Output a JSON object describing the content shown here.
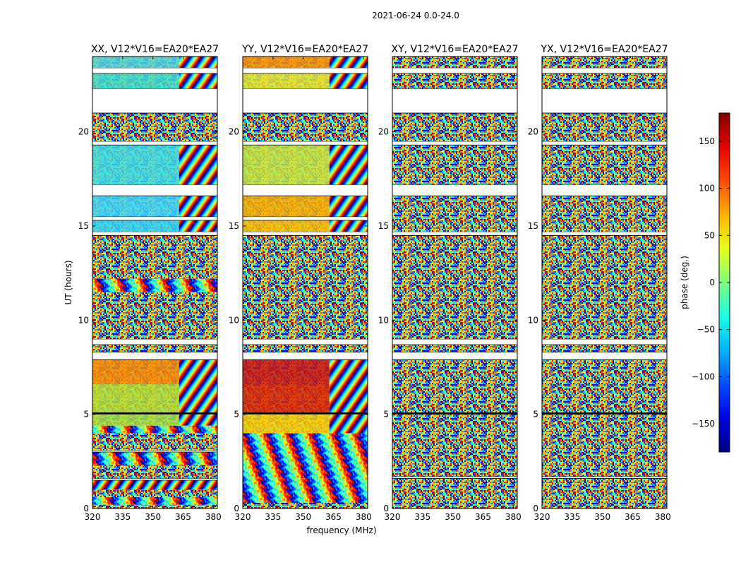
{
  "figure": {
    "suptitle": "2021-06-24 0.0-24.0"
  },
  "chart_data": {
    "type": "heatmap",
    "title": "2021-06-24 0.0-24.0",
    "xlabel": "frequency (MHz)",
    "ylabel": "UT (hours)",
    "xlim": [
      320,
      382
    ],
    "ylim": [
      0,
      24
    ],
    "x_ticks": [
      320,
      335,
      350,
      365,
      380
    ],
    "y_ticks": [
      0,
      5,
      10,
      15,
      20
    ],
    "panels": [
      {
        "title": "XX, V12*V16=EA20*EA27",
        "bands": [
          {
            "t0": 0.0,
            "t1": 0.2,
            "mode": "noise"
          },
          {
            "t0": 0.2,
            "t1": 0.6,
            "mode": "fringe",
            "color": "mixed"
          },
          {
            "t0": 0.6,
            "t1": 1.0,
            "mode": "noise"
          },
          {
            "t0": 1.0,
            "t1": 1.5,
            "mode": "fringe",
            "color": "orange"
          },
          {
            "t0": 1.5,
            "t1": 1.6,
            "mode": "white"
          },
          {
            "t0": 1.6,
            "t1": 2.3,
            "mode": "noise"
          },
          {
            "t0": 2.3,
            "t1": 3.0,
            "mode": "fringe",
            "color": "mixed"
          },
          {
            "t0": 3.0,
            "t1": 3.1,
            "mode": "white"
          },
          {
            "t0": 3.1,
            "t1": 4.0,
            "mode": "noise"
          },
          {
            "t0": 4.0,
            "t1": 4.4,
            "mode": "fringe",
            "color": "mixed"
          },
          {
            "t0": 4.4,
            "t1": 5.0,
            "mode": "split",
            "colorL": "#a8e040",
            "colorR": "fringe"
          },
          {
            "t0": 5.0,
            "t1": 5.1,
            "mode": "black"
          },
          {
            "t0": 5.1,
            "t1": 6.6,
            "mode": "split",
            "colorL": "#b8e030",
            "colorR": "fringe"
          },
          {
            "t0": 6.6,
            "t1": 7.9,
            "mode": "split",
            "colorL": "#ff8800",
            "colorR": "fringe"
          },
          {
            "t0": 7.9,
            "t1": 8.3,
            "mode": "white"
          },
          {
            "t0": 8.3,
            "t1": 8.7,
            "mode": "noise"
          },
          {
            "t0": 8.7,
            "t1": 9.0,
            "mode": "white"
          },
          {
            "t0": 9.0,
            "t1": 11.5,
            "mode": "noise"
          },
          {
            "t0": 11.5,
            "t1": 12.2,
            "mode": "fringe",
            "color": "mixed"
          },
          {
            "t0": 12.2,
            "t1": 14.5,
            "mode": "noise"
          },
          {
            "t0": 14.5,
            "t1": 14.7,
            "mode": "white"
          },
          {
            "t0": 14.7,
            "t1": 15.3,
            "mode": "split",
            "colorL": "#30d8ff",
            "colorR": "fringe"
          },
          {
            "t0": 15.3,
            "t1": 15.5,
            "mode": "white"
          },
          {
            "t0": 15.5,
            "t1": 16.6,
            "mode": "split",
            "colorL": "#40d8ff",
            "colorR": "fringe"
          },
          {
            "t0": 16.6,
            "t1": 17.2,
            "mode": "white"
          },
          {
            "t0": 17.2,
            "t1": 19.3,
            "mode": "split",
            "colorL": "#40e0e8",
            "colorR": "fringe"
          },
          {
            "t0": 19.3,
            "t1": 19.5,
            "mode": "white"
          },
          {
            "t0": 19.5,
            "t1": 21.0,
            "mode": "noise"
          },
          {
            "t0": 21.0,
            "t1": 22.3,
            "mode": "white"
          },
          {
            "t0": 22.3,
            "t1": 23.1,
            "mode": "split",
            "colorL": "#40e0d0",
            "colorR": "fringe"
          },
          {
            "t0": 23.1,
            "t1": 23.4,
            "mode": "white"
          },
          {
            "t0": 23.4,
            "t1": 24.0,
            "mode": "split",
            "colorL": "#50d8e0",
            "colorR": "fringe"
          }
        ]
      },
      {
        "title": "YY, V12*V16=EA20*EA27",
        "bands": [
          {
            "t0": 0.0,
            "t1": 0.3,
            "mode": "noise"
          },
          {
            "t0": 0.3,
            "t1": 1.6,
            "mode": "fringe",
            "color": "mixed"
          },
          {
            "t0": 1.6,
            "t1": 4.0,
            "mode": "fringe",
            "color": "mixed"
          },
          {
            "t0": 4.0,
            "t1": 5.0,
            "mode": "split",
            "colorL": "#ffd000",
            "colorR": "fringe"
          },
          {
            "t0": 5.0,
            "t1": 5.1,
            "mode": "black"
          },
          {
            "t0": 5.1,
            "t1": 6.6,
            "mode": "split",
            "colorL": "#e02000",
            "colorR": "fringe"
          },
          {
            "t0": 6.6,
            "t1": 7.9,
            "mode": "split",
            "colorL": "#cc1010",
            "colorR": "fringe"
          },
          {
            "t0": 7.9,
            "t1": 8.3,
            "mode": "white"
          },
          {
            "t0": 8.3,
            "t1": 8.7,
            "mode": "noise"
          },
          {
            "t0": 8.7,
            "t1": 9.0,
            "mode": "white"
          },
          {
            "t0": 9.0,
            "t1": 14.5,
            "mode": "noise"
          },
          {
            "t0": 14.5,
            "t1": 14.7,
            "mode": "white"
          },
          {
            "t0": 14.7,
            "t1": 15.3,
            "mode": "split",
            "colorL": "#ffc000",
            "colorR": "fringe"
          },
          {
            "t0": 15.3,
            "t1": 15.5,
            "mode": "white"
          },
          {
            "t0": 15.5,
            "t1": 16.6,
            "mode": "split",
            "colorL": "#ffb000",
            "colorR": "fringe"
          },
          {
            "t0": 16.6,
            "t1": 17.2,
            "mode": "white"
          },
          {
            "t0": 17.2,
            "t1": 19.3,
            "mode": "split",
            "colorL": "#c8e840",
            "colorR": "fringe"
          },
          {
            "t0": 19.3,
            "t1": 19.5,
            "mode": "white"
          },
          {
            "t0": 19.5,
            "t1": 21.0,
            "mode": "noise"
          },
          {
            "t0": 21.0,
            "t1": 22.3,
            "mode": "white"
          },
          {
            "t0": 22.3,
            "t1": 23.1,
            "mode": "split",
            "colorL": "#e8e830",
            "colorR": "fringe"
          },
          {
            "t0": 23.1,
            "t1": 23.4,
            "mode": "white"
          },
          {
            "t0": 23.4,
            "t1": 24.0,
            "mode": "split",
            "colorL": "#ff9000",
            "colorR": "fringe"
          }
        ]
      },
      {
        "title": "XY, V12*V16=EA20*EA27",
        "bands": [
          {
            "t0": 0.0,
            "t1": 1.6,
            "mode": "noise"
          },
          {
            "t0": 1.6,
            "t1": 1.7,
            "mode": "white"
          },
          {
            "t0": 1.7,
            "t1": 5.0,
            "mode": "noise"
          },
          {
            "t0": 5.0,
            "t1": 5.1,
            "mode": "black"
          },
          {
            "t0": 5.1,
            "t1": 7.9,
            "mode": "noise"
          },
          {
            "t0": 7.9,
            "t1": 8.3,
            "mode": "white"
          },
          {
            "t0": 8.3,
            "t1": 8.7,
            "mode": "noise"
          },
          {
            "t0": 8.7,
            "t1": 9.0,
            "mode": "white"
          },
          {
            "t0": 9.0,
            "t1": 14.5,
            "mode": "noise"
          },
          {
            "t0": 14.5,
            "t1": 14.7,
            "mode": "white"
          },
          {
            "t0": 14.7,
            "t1": 16.6,
            "mode": "noise"
          },
          {
            "t0": 16.6,
            "t1": 17.2,
            "mode": "white"
          },
          {
            "t0": 17.2,
            "t1": 19.3,
            "mode": "noise"
          },
          {
            "t0": 19.3,
            "t1": 19.5,
            "mode": "white"
          },
          {
            "t0": 19.5,
            "t1": 21.0,
            "mode": "noise"
          },
          {
            "t0": 21.0,
            "t1": 22.3,
            "mode": "white"
          },
          {
            "t0": 22.3,
            "t1": 23.1,
            "mode": "noise"
          },
          {
            "t0": 23.1,
            "t1": 23.4,
            "mode": "white"
          },
          {
            "t0": 23.4,
            "t1": 24.0,
            "mode": "noise"
          }
        ]
      },
      {
        "title": "YX, V12*V16=EA20*EA27",
        "bands": [
          {
            "t0": 0.0,
            "t1": 1.6,
            "mode": "noise"
          },
          {
            "t0": 1.6,
            "t1": 1.7,
            "mode": "white"
          },
          {
            "t0": 1.7,
            "t1": 5.0,
            "mode": "noise"
          },
          {
            "t0": 5.0,
            "t1": 5.1,
            "mode": "black"
          },
          {
            "t0": 5.1,
            "t1": 7.9,
            "mode": "noise"
          },
          {
            "t0": 7.9,
            "t1": 8.3,
            "mode": "white"
          },
          {
            "t0": 8.3,
            "t1": 8.7,
            "mode": "noise"
          },
          {
            "t0": 8.7,
            "t1": 9.0,
            "mode": "white"
          },
          {
            "t0": 9.0,
            "t1": 14.5,
            "mode": "noise"
          },
          {
            "t0": 14.5,
            "t1": 14.7,
            "mode": "white"
          },
          {
            "t0": 14.7,
            "t1": 16.6,
            "mode": "noise"
          },
          {
            "t0": 16.6,
            "t1": 17.2,
            "mode": "white"
          },
          {
            "t0": 17.2,
            "t1": 19.3,
            "mode": "noise"
          },
          {
            "t0": 19.3,
            "t1": 19.5,
            "mode": "white"
          },
          {
            "t0": 19.5,
            "t1": 21.0,
            "mode": "noise"
          },
          {
            "t0": 21.0,
            "t1": 22.3,
            "mode": "white"
          },
          {
            "t0": 22.3,
            "t1": 23.1,
            "mode": "noise"
          },
          {
            "t0": 23.1,
            "t1": 23.4,
            "mode": "white"
          },
          {
            "t0": 23.4,
            "t1": 24.0,
            "mode": "noise"
          }
        ]
      }
    ],
    "colorbar": {
      "label": "phase (deg.)",
      "colormap": "jet",
      "range": [
        -180,
        180
      ],
      "ticks": [
        -150,
        -100,
        -50,
        0,
        50,
        100,
        150
      ],
      "tick_labels": [
        "−150",
        "−100",
        "−50",
        "0",
        "50",
        "100",
        "150"
      ]
    }
  }
}
